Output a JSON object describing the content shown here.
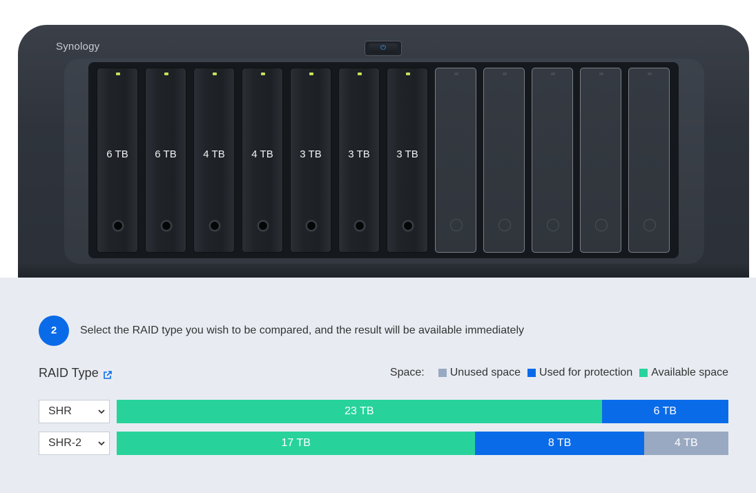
{
  "device": {
    "brand": "Synology",
    "power_glyph": "⏻",
    "drives": [
      {
        "capacity": "6 TB",
        "filled": true
      },
      {
        "capacity": "6 TB",
        "filled": true
      },
      {
        "capacity": "4 TB",
        "filled": true
      },
      {
        "capacity": "4 TB",
        "filled": true
      },
      {
        "capacity": "3 TB",
        "filled": true
      },
      {
        "capacity": "3 TB",
        "filled": true
      },
      {
        "capacity": "3 TB",
        "filled": true
      },
      {
        "capacity": "",
        "filled": false
      },
      {
        "capacity": "",
        "filled": false
      },
      {
        "capacity": "",
        "filled": false
      },
      {
        "capacity": "",
        "filled": false
      },
      {
        "capacity": "",
        "filled": false
      }
    ]
  },
  "step": {
    "number": "2",
    "instruction": "Select the RAID type you wish to be compared, and the result will be available immediately"
  },
  "raid": {
    "title": "RAID Type",
    "title_icon": "external-link-icon"
  },
  "legend": {
    "label": "Space:",
    "items": [
      {
        "label": "Unused space",
        "color": "#99a9c1"
      },
      {
        "label": "Used for protection",
        "color": "#0a6be8"
      },
      {
        "label": "Available space",
        "color": "#27d39b"
      }
    ]
  },
  "rows": [
    {
      "selected": "SHR",
      "segments": [
        {
          "label": "23 TB",
          "kind": "available",
          "tb": 23
        },
        {
          "label": "6 TB",
          "kind": "protection",
          "tb": 6
        }
      ]
    },
    {
      "selected": "SHR-2",
      "segments": [
        {
          "label": "17 TB",
          "kind": "available",
          "tb": 17
        },
        {
          "label": "8 TB",
          "kind": "protection",
          "tb": 8
        },
        {
          "label": "4 TB",
          "kind": "unused",
          "tb": 4
        }
      ]
    }
  ],
  "colors": {
    "available": "#27d39b",
    "protection": "#0a6be8",
    "unused": "#99a9c1",
    "accent": "#0a6be8"
  }
}
